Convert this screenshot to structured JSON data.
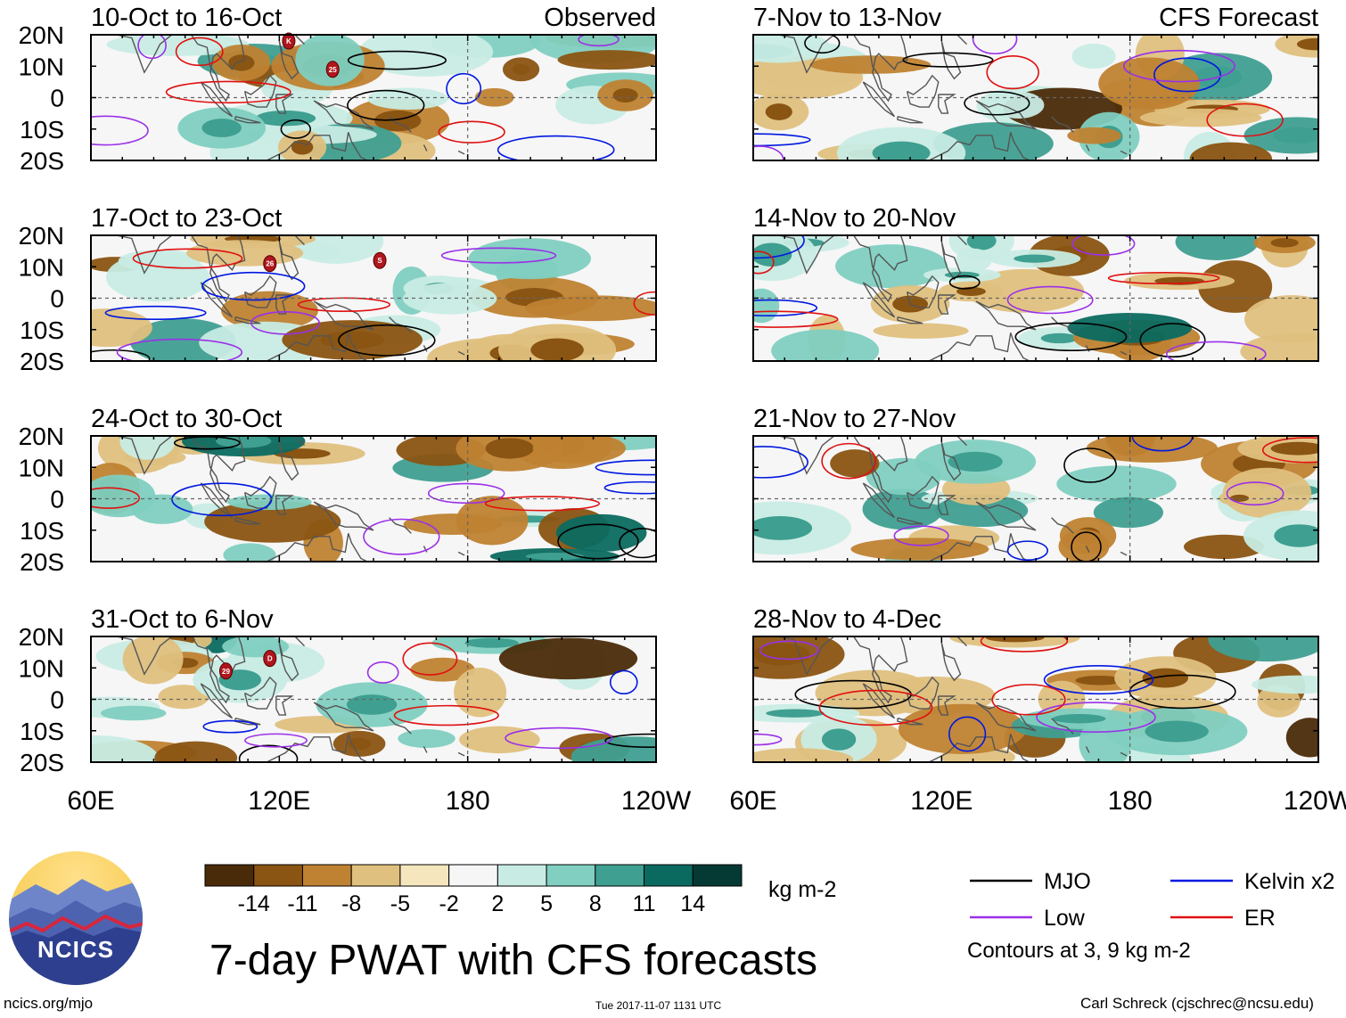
{
  "title": "7-day PWAT with CFS forecasts",
  "source_link": "ncics.org/mjo",
  "timestamp": "Tue 2017-11-07 1131 UTC",
  "author": "Carl Schreck (cjschrec@ncsu.edu)",
  "logo": {
    "label": "NCICS",
    "sky": "#f6c94a",
    "mountains": "#3b4f9e",
    "ridge": "#d7263d"
  },
  "chart_data": {
    "type": "heatmap",
    "variable": "PWAT anomaly",
    "units": "kg m-2",
    "x_ticks": [
      "60E",
      "120E",
      "180",
      "120W"
    ],
    "y_ticks": [
      "20N",
      "10N",
      "0",
      "10S",
      "20S"
    ],
    "xlim": [
      60,
      240
    ],
    "ylim": [
      -20,
      20
    ],
    "colorbar": {
      "labels": [
        "-14",
        "-11",
        "-8",
        "-5",
        "-2",
        "2",
        "5",
        "8",
        "11",
        "14"
      ],
      "colors": [
        "#4a2b09",
        "#8a5412",
        "#bf8232",
        "#dfc07e",
        "#f5e6bd",
        "#f6f6f6",
        "#c8ece4",
        "#80cfc0",
        "#3f9f91",
        "#0b6a60",
        "#053a34"
      ]
    },
    "legend": {
      "items": [
        {
          "label": "MJO",
          "color": "#000000"
        },
        {
          "label": "Kelvin x2",
          "color": "#0018e0"
        },
        {
          "label": "Low",
          "color": "#9b30e8"
        },
        {
          "label": "ER",
          "color": "#e01010"
        }
      ],
      "contour_note": "Contours at 3, 9 kg m-2"
    },
    "panels": [
      {
        "period": "10-Oct to 16-Oct",
        "tag": "Observed",
        "storms": [
          {
            "code": "K",
            "lon": 123,
            "lat": 18
          },
          {
            "code": "25",
            "lon": 137,
            "lat": 9
          }
        ]
      },
      {
        "period": "7-Nov to 13-Nov",
        "tag": "CFS Forecast",
        "storms": []
      },
      {
        "period": "17-Oct to 23-Oct",
        "tag": "",
        "storms": [
          {
            "code": "26",
            "lon": 117,
            "lat": 11
          },
          {
            "code": "S",
            "lon": 152,
            "lat": 12
          }
        ]
      },
      {
        "period": "14-Nov to 20-Nov",
        "tag": "",
        "storms": []
      },
      {
        "period": "24-Oct to 30-Oct",
        "tag": "",
        "storms": []
      },
      {
        "period": "21-Nov to 27-Nov",
        "tag": "",
        "storms": []
      },
      {
        "period": "31-Oct to 6-Nov",
        "tag": "",
        "storms": [
          {
            "code": "29",
            "lon": 103,
            "lat": 9
          },
          {
            "code": "D",
            "lon": 117,
            "lat": 13
          }
        ]
      },
      {
        "period": "28-Nov to 4-Dec",
        "tag": "",
        "storms": []
      }
    ]
  }
}
